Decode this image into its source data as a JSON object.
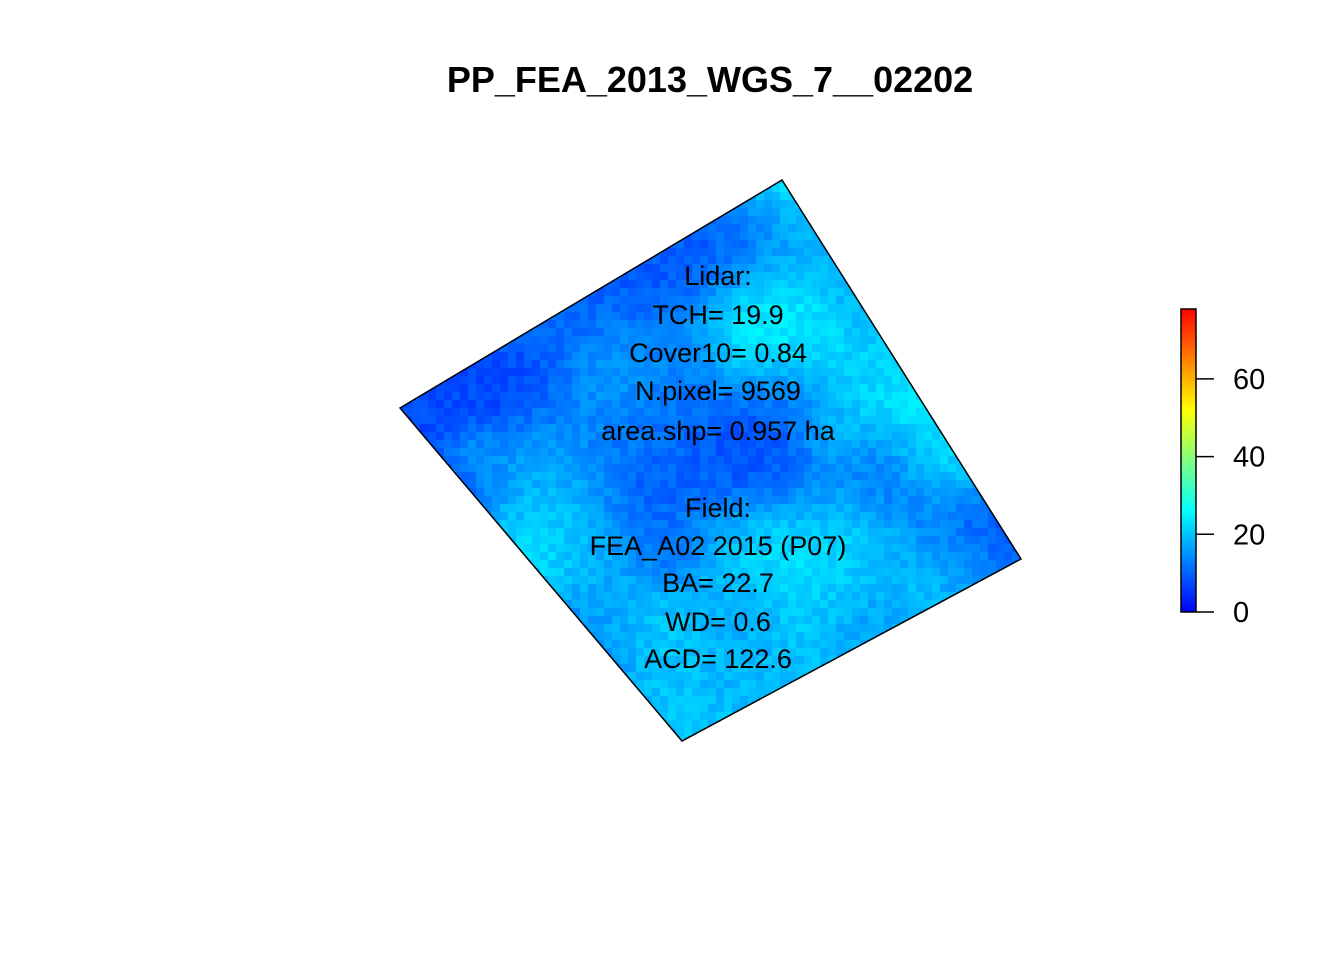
{
  "chart_data": {
    "type": "heatmap",
    "title": "PP_FEA_2013_WGS_7__02202",
    "xlabel": "",
    "ylabel": "",
    "legend": {
      "placement": "right",
      "range": [
        0,
        78
      ],
      "ticks": [
        0,
        20,
        40,
        60
      ],
      "tick_labels": [
        "0",
        "20",
        "40",
        "60"
      ],
      "colors": [
        "#0000ff",
        "#0080ff",
        "#00ffff",
        "#80ff80",
        "#ffff00",
        "#ff8000",
        "#ff0000"
      ]
    },
    "annotations": {
      "lidar": [
        "Lidar:",
        "TCH= 19.9",
        "Cover10= 0.84",
        "N.pixel= 9569",
        "area.shp= 0.957 ha"
      ],
      "field": [
        "Field:",
        "FEA_A02 2015 (P07)",
        "BA= 22.7",
        "WD= 0.6",
        "ACD= 122.6"
      ]
    },
    "values_summary": {
      "mean_height": 19.9,
      "min": 0,
      "max": 35
    }
  }
}
